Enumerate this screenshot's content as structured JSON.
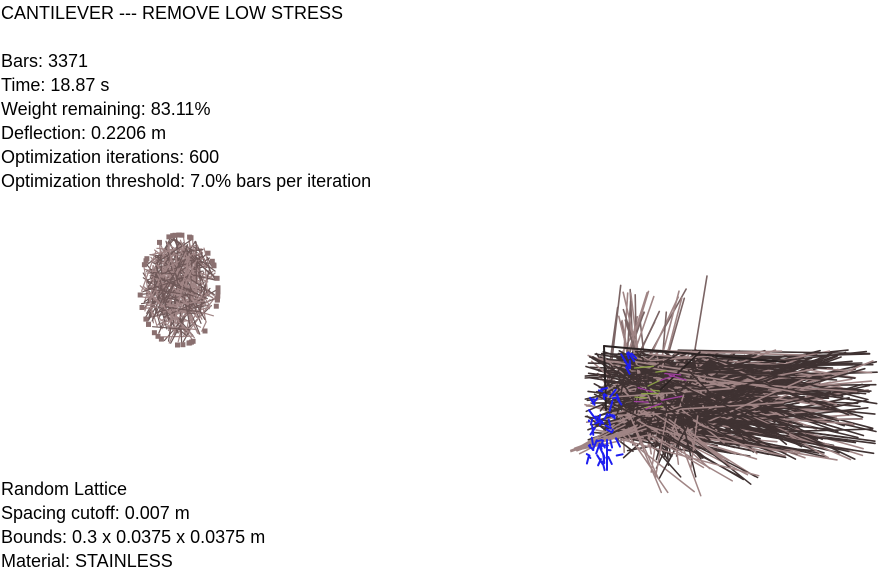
{
  "header": {
    "title": "CANTILEVER --- REMOVE LOW STRESS"
  },
  "stats": [
    "Bars: 3371",
    "Time: 18.87 s",
    "Weight remaining: 83.11%",
    "Deflection: 0.2206 m",
    "Optimization iterations: 600",
    "Optimization threshold: 7.0% bars per iteration"
  ],
  "footer": [
    "Random Lattice",
    "Spacing cutoff: 0.007 m",
    "Bounds: 0.3 x 0.0375 x 0.0375 m",
    "Material: STAINLESS"
  ],
  "colors": {
    "bar_light": "#a08585",
    "bar_dark": "#3f3232",
    "load_highlight": "#1e1ef0",
    "accent_green": "#8aa045",
    "accent_magenta": "#a040a0"
  },
  "icons": {
    "small_lattice": "small-lattice-render",
    "large_structure": "cantilever-structure-render"
  }
}
